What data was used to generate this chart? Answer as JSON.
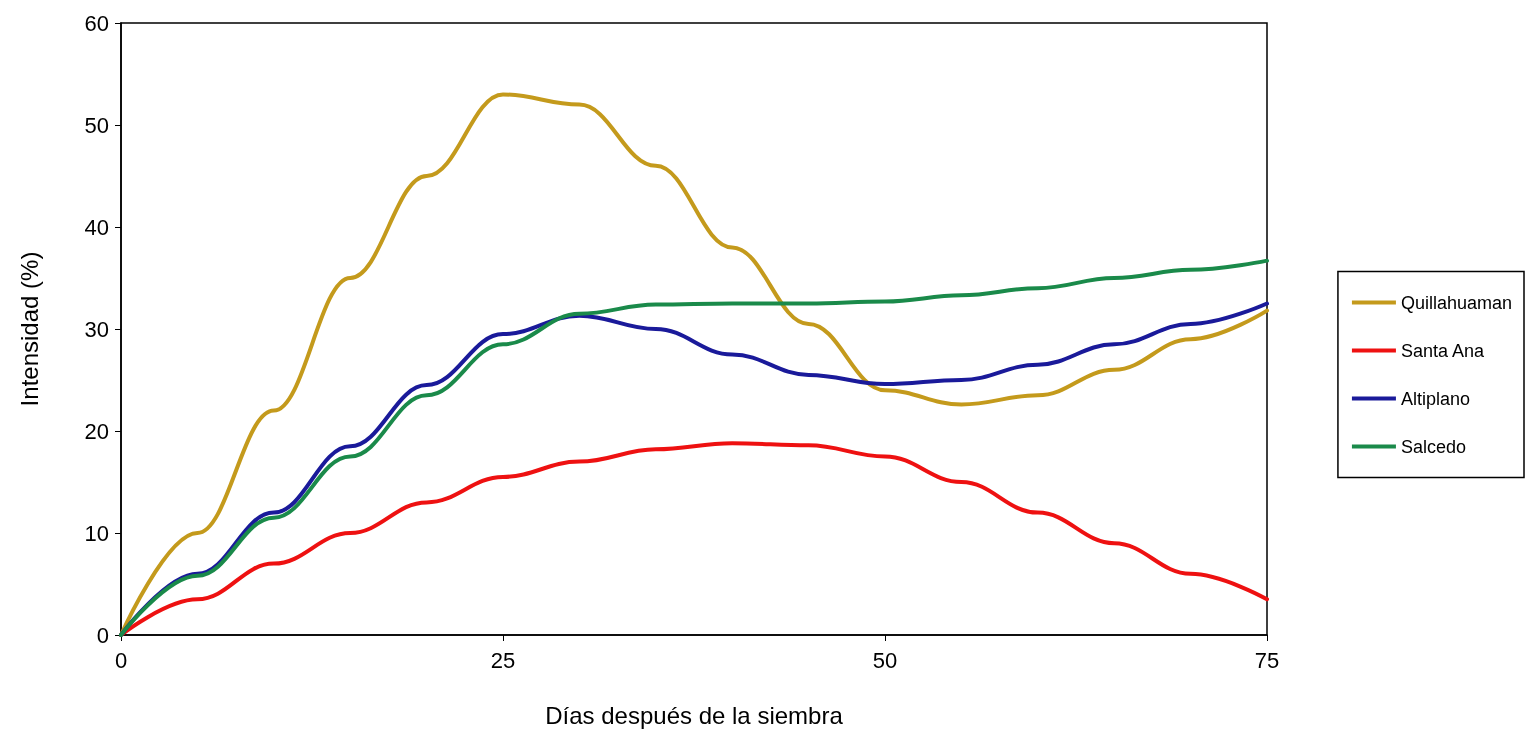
{
  "chart_data": {
    "type": "line",
    "xlabel": "Días después de la siembra",
    "ylabel": "Intensidad (%)",
    "x": [
      0,
      5,
      10,
      15,
      20,
      25,
      30,
      35,
      40,
      45,
      50,
      55,
      60,
      65,
      70,
      75
    ],
    "series": [
      {
        "name": "Quillahuaman",
        "color": "#c49a1c",
        "values": [
          0,
          10,
          22,
          35,
          45,
          53,
          52,
          46,
          38,
          30.5,
          24,
          22.6,
          23.5,
          26,
          29,
          31.8
        ]
      },
      {
        "name": "Santa Ana",
        "color": "#ee1111",
        "values": [
          0,
          3.5,
          7,
          10,
          13,
          15.5,
          17,
          18.2,
          18.8,
          18.6,
          17.5,
          15,
          12,
          9,
          6,
          3.5
        ]
      },
      {
        "name": "Altiplano",
        "color": "#1a1a9a",
        "values": [
          0,
          6,
          12,
          18.5,
          24.5,
          29.5,
          31.3,
          30,
          27.5,
          25.5,
          24.6,
          25,
          26.5,
          28.5,
          30.5,
          32.5
        ]
      },
      {
        "name": "Salcedo",
        "color": "#1a8a4a",
        "values": [
          0,
          5.8,
          11.5,
          17.5,
          23.5,
          28.5,
          31.5,
          32.4,
          32.5,
          32.5,
          32.7,
          33.3,
          34,
          35,
          35.8,
          36.7
        ]
      }
    ],
    "xlim": [
      0,
      75
    ],
    "xticks": [
      0,
      25,
      50,
      75
    ],
    "ylim": [
      0,
      60
    ],
    "yticks": [
      0,
      10,
      20,
      30,
      40,
      50,
      60
    ],
    "grid": false,
    "legend": "right",
    "marker": "none",
    "line_style": "solid"
  }
}
